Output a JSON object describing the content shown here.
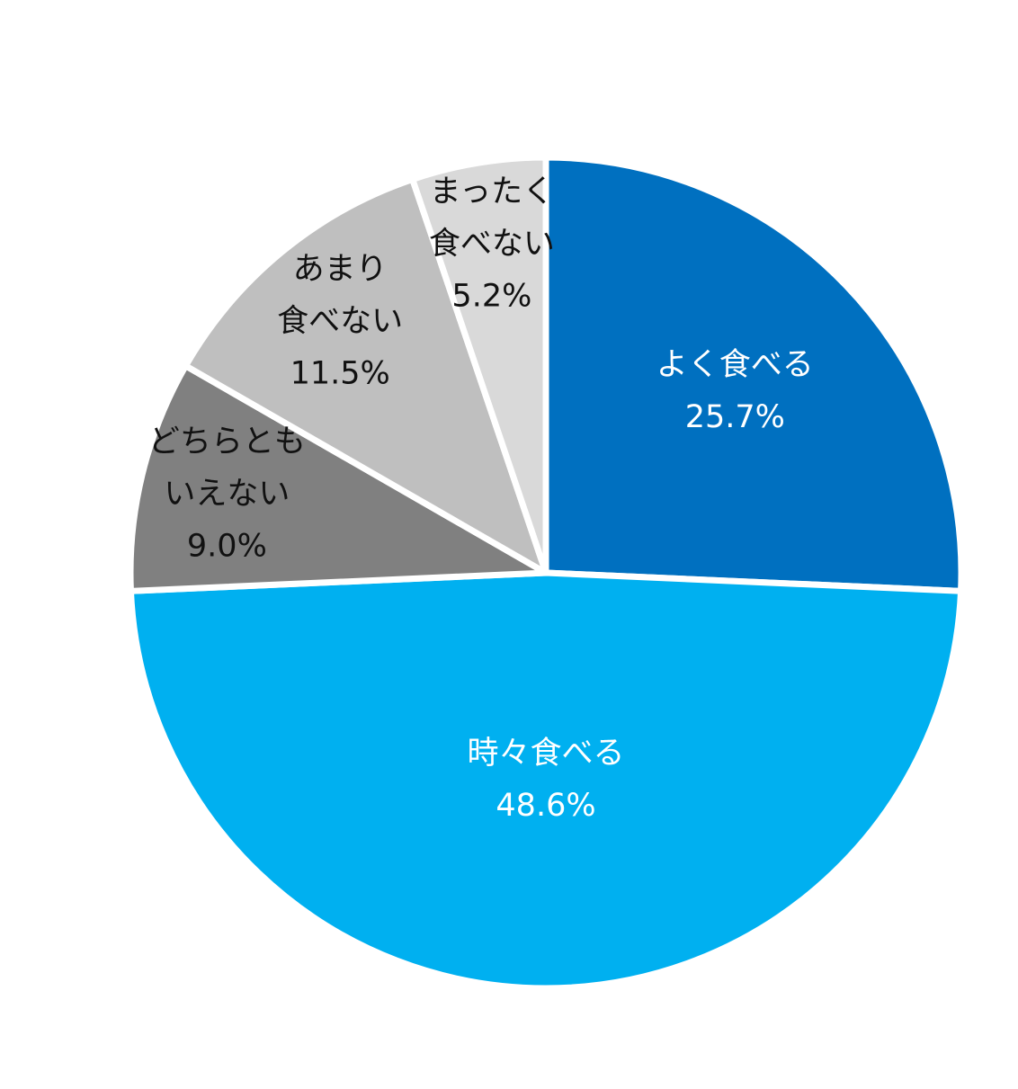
{
  "chart_data": {
    "type": "pie",
    "categories": [
      [
        "よく食べる"
      ],
      [
        "時々食べる"
      ],
      [
        "どちらとも",
        "いえない"
      ],
      [
        "あまり",
        "食べない"
      ],
      [
        "まったく",
        "食べない"
      ]
    ],
    "values": [
      25.7,
      48.6,
      9.0,
      11.5,
      5.2
    ],
    "value_labels": [
      "25.7%",
      "48.6%",
      "9.0%",
      "11.5%",
      "5.2%"
    ],
    "colors": [
      "#0070C0",
      "#00B0F0",
      "#808080",
      "#BFBFBF",
      "#D9D9D9"
    ]
  }
}
